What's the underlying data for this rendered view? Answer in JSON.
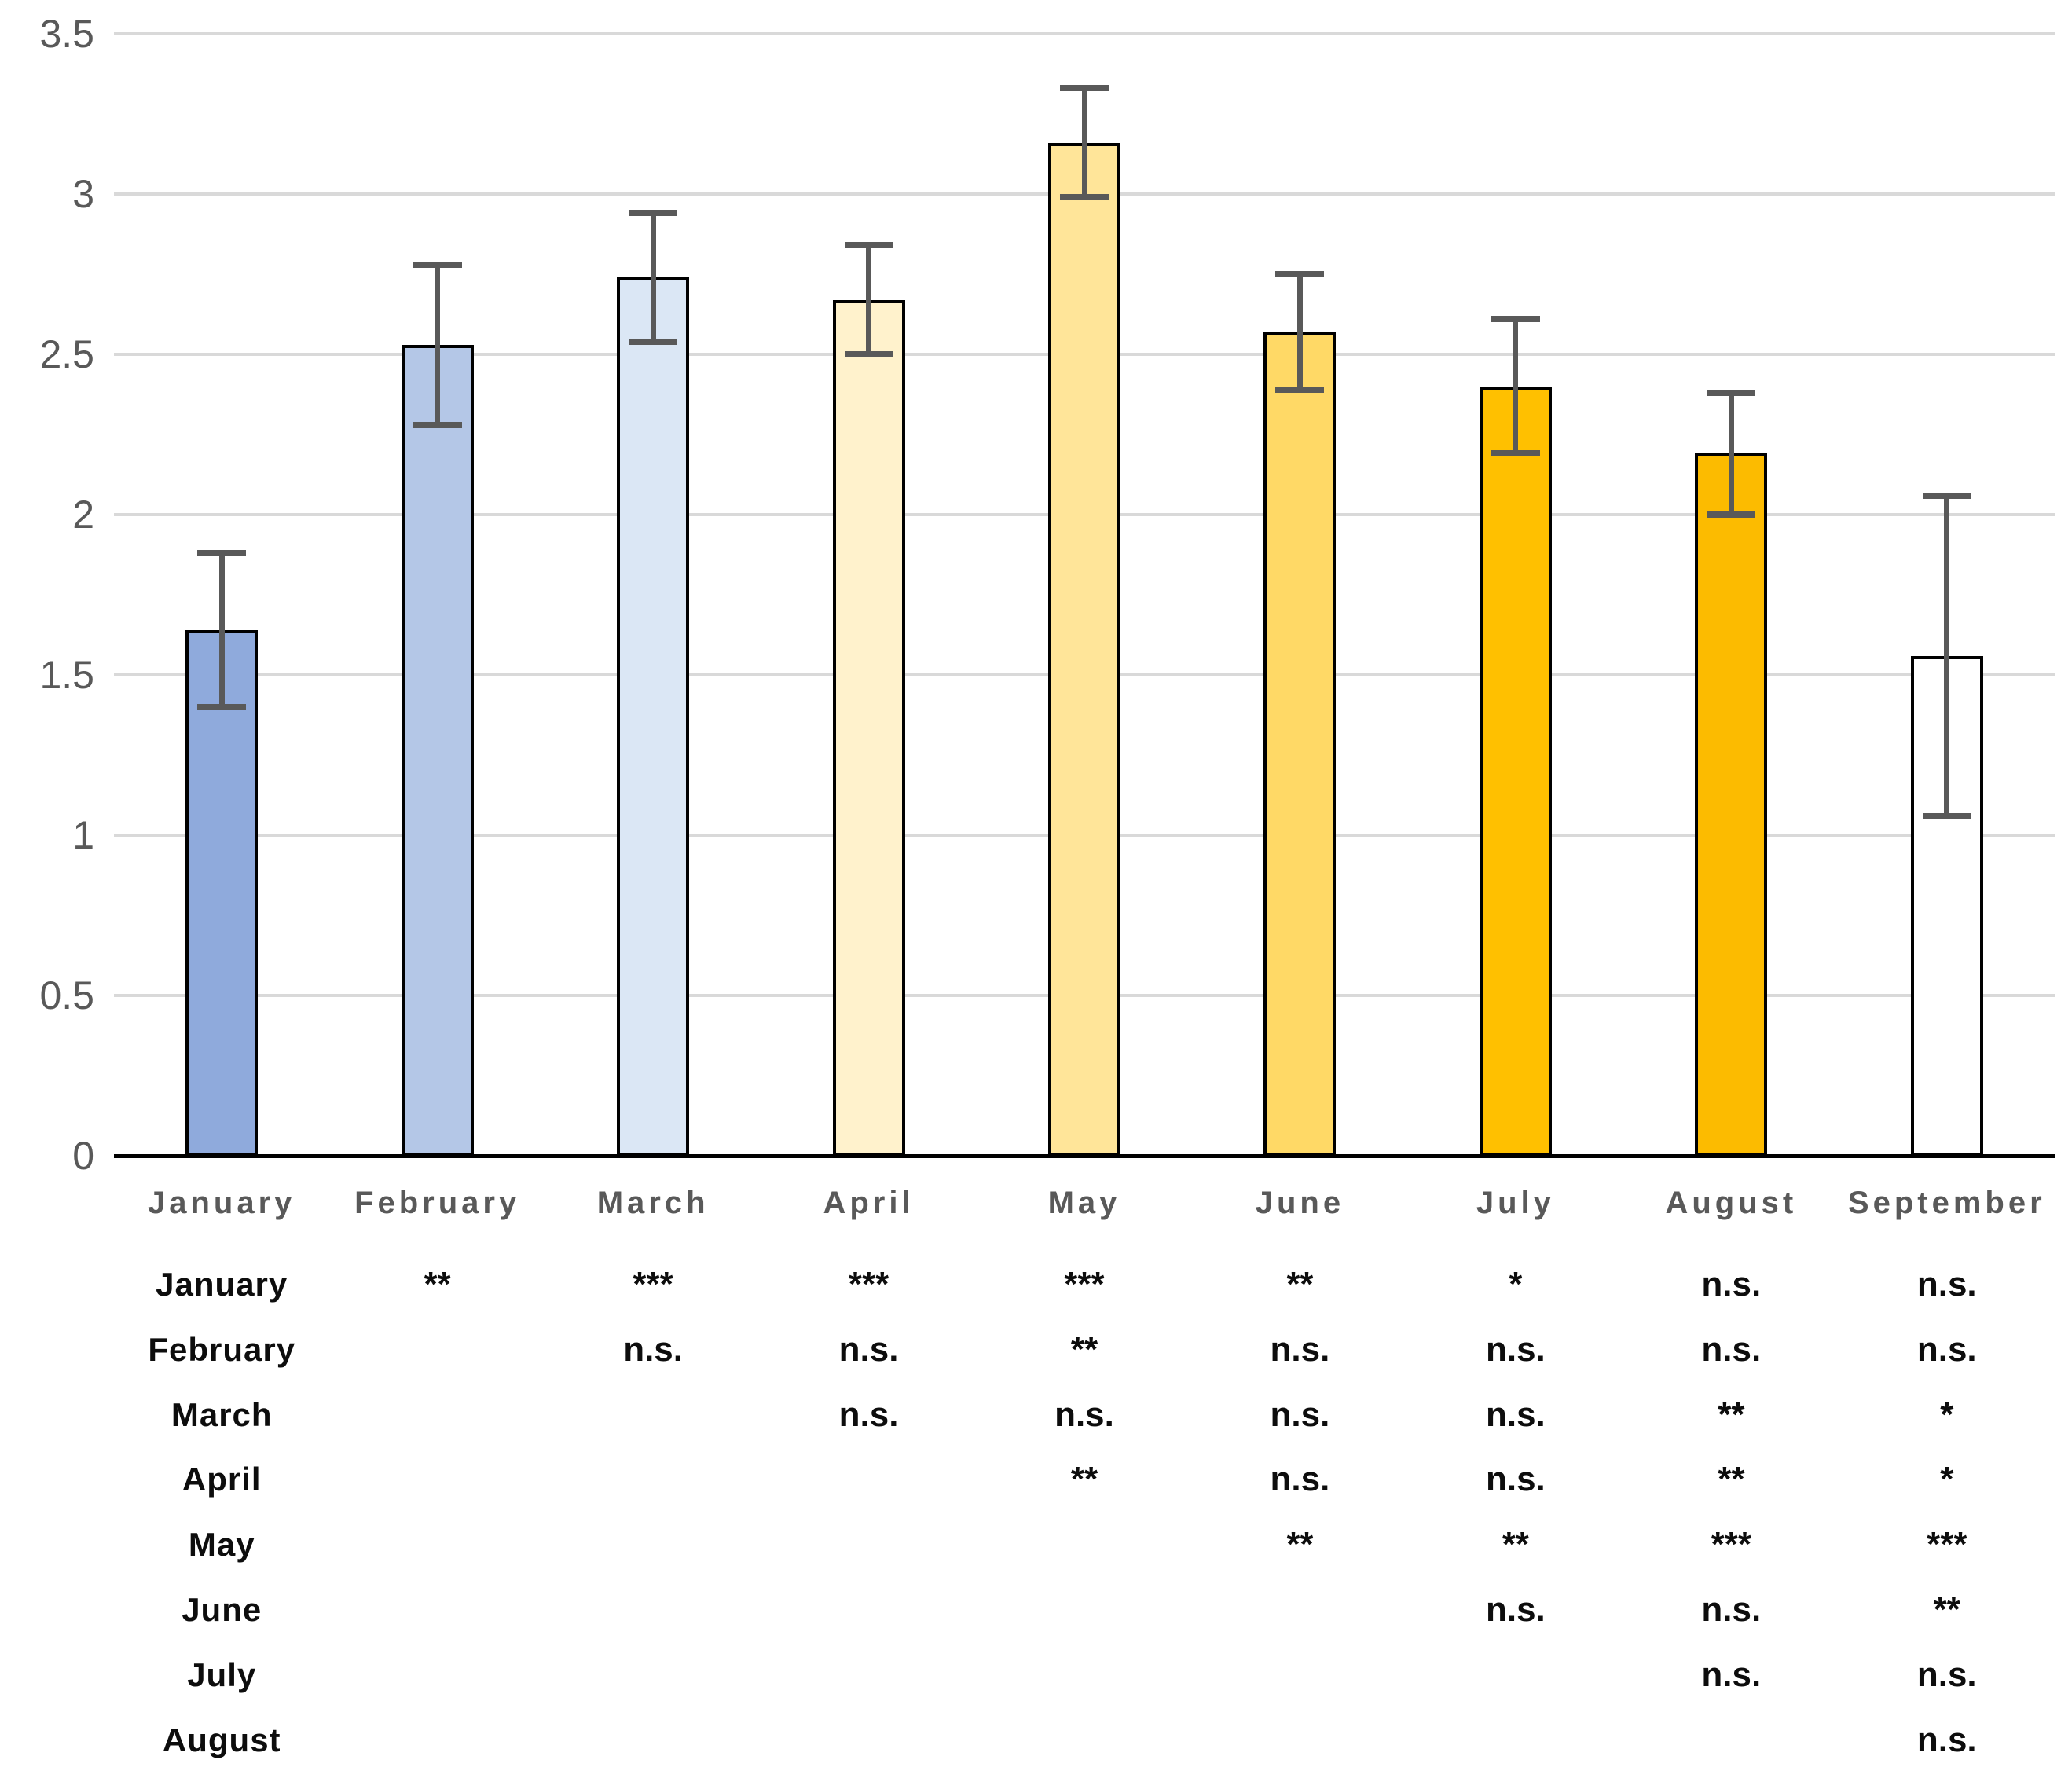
{
  "chart_data": {
    "type": "bar",
    "title": "",
    "xlabel": "",
    "ylabel": "",
    "categories": [
      "January",
      "February",
      "March",
      "April",
      "May",
      "June",
      "July",
      "August",
      "September"
    ],
    "values": [
      1.64,
      2.53,
      2.74,
      2.67,
      3.16,
      2.57,
      2.4,
      2.19,
      1.56
    ],
    "error_upper": [
      1.88,
      2.78,
      2.94,
      2.84,
      3.33,
      2.75,
      2.61,
      2.38,
      2.06
    ],
    "error_lower": [
      1.4,
      2.28,
      2.54,
      2.5,
      2.99,
      2.39,
      2.19,
      2.0,
      1.06
    ],
    "bar_colors": [
      "#8FAADC",
      "#B4C7E7",
      "#DBE7F5",
      "#FFF2CC",
      "#FFE599",
      "#FFD966",
      "#FFC000",
      "#FCBB00",
      "#FFFFFF"
    ],
    "bar_border_color": "#000000",
    "error_bar_color": "#595959",
    "gridline_color": "#D9D9D9",
    "axis_color": "#000000",
    "tick_label_color": "#595959",
    "category_label_color": "#595959",
    "ylim": [
      0,
      3.5
    ],
    "yticks": [
      "3.5",
      "3",
      "2.5",
      "2",
      "1.5",
      "1",
      "0.5",
      "0"
    ],
    "ytick_values": [
      3.5,
      3.0,
      2.5,
      2.0,
      1.5,
      1.0,
      0.5,
      0.0
    ],
    "grid": true,
    "legend": "none"
  },
  "significance_table": {
    "columns": [
      "February",
      "March",
      "April",
      "May",
      "June",
      "July",
      "August",
      "September"
    ],
    "rows": [
      {
        "label": "January",
        "cells": [
          "**",
          "***",
          "***",
          "***",
          "**",
          "*",
          "n.s.",
          "n.s."
        ]
      },
      {
        "label": "February",
        "cells": [
          null,
          "n.s.",
          "n.s.",
          "**",
          "n.s.",
          "n.s.",
          "n.s.",
          "n.s."
        ]
      },
      {
        "label": "March",
        "cells": [
          null,
          null,
          "n.s.",
          "n.s.",
          "n.s.",
          "n.s.",
          "**",
          "*"
        ]
      },
      {
        "label": "April",
        "cells": [
          null,
          null,
          null,
          "**",
          "n.s.",
          "n.s.",
          "**",
          "*"
        ]
      },
      {
        "label": "May",
        "cells": [
          null,
          null,
          null,
          null,
          "**",
          "**",
          "***",
          "***"
        ]
      },
      {
        "label": "June",
        "cells": [
          null,
          null,
          null,
          null,
          null,
          "n.s.",
          "n.s.",
          "**"
        ]
      },
      {
        "label": "July",
        "cells": [
          null,
          null,
          null,
          null,
          null,
          null,
          "n.s.",
          "n.s."
        ]
      },
      {
        "label": "August",
        "cells": [
          null,
          null,
          null,
          null,
          null,
          null,
          null,
          "n.s."
        ]
      }
    ]
  }
}
